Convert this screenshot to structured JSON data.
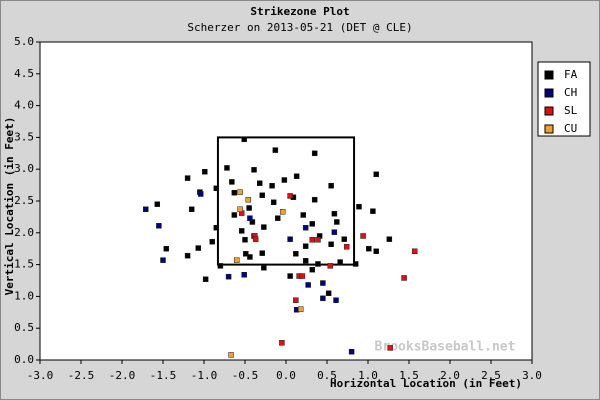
{
  "chart_data": {
    "type": "scatter",
    "title": "Strikezone Plot",
    "subtitle": "Scherzer on 2013-05-21 (DET @ CLE)",
    "x_label": "Horizontal Location (in Feet)",
    "y_label": "Vertical Location (in Feet)",
    "watermark": "BrooksBaseball.net",
    "xlim": [
      -3.0,
      3.0
    ],
    "ylim": [
      0.0,
      5.0
    ],
    "xticks": [
      {
        "value": -3.0,
        "label": "-3.0"
      },
      {
        "value": -2.5,
        "label": "-2.5"
      },
      {
        "value": -2.0,
        "label": "-2.0"
      },
      {
        "value": -1.5,
        "label": "-1.5"
      },
      {
        "value": -1.0,
        "label": "-1.0"
      },
      {
        "value": -0.5,
        "label": "-0.5"
      },
      {
        "value": 0.0,
        "label": "0.0"
      },
      {
        "value": 0.5,
        "label": "0.5"
      },
      {
        "value": 1.0,
        "label": "1.0"
      },
      {
        "value": 1.5,
        "label": "1.5"
      },
      {
        "value": 2.0,
        "label": "2.0"
      },
      {
        "value": 2.5,
        "label": "2.5"
      },
      {
        "value": 3.0,
        "label": "3.0"
      }
    ],
    "yticks": [
      {
        "value": 0.0,
        "label": "0.0"
      },
      {
        "value": 0.5,
        "label": "0.5"
      },
      {
        "value": 1.0,
        "label": "1.0"
      },
      {
        "value": 1.5,
        "label": "1.5"
      },
      {
        "value": 2.0,
        "label": "2.0"
      },
      {
        "value": 2.5,
        "label": "2.5"
      },
      {
        "value": 3.0,
        "label": "3.0"
      },
      {
        "value": 3.5,
        "label": "3.5"
      },
      {
        "value": 4.0,
        "label": "4.0"
      },
      {
        "value": 4.5,
        "label": "4.5"
      },
      {
        "value": 5.0,
        "label": "5.0"
      }
    ],
    "strike_zone": {
      "x": [
        -0.83,
        0.83
      ],
      "y": [
        1.5,
        3.5
      ]
    },
    "legend": "top-right",
    "series": [
      {
        "name": "FA",
        "color": "#000000",
        "x": [
          -1.2,
          -0.99,
          -1.15,
          -1.05,
          -0.85,
          -0.85,
          -1.57,
          -1.46,
          -1.2,
          -1.07,
          -0.9,
          -0.98,
          -0.8,
          -0.51,
          -0.13,
          0.35,
          -0.72,
          -0.39,
          -0.66,
          -0.32,
          -0.17,
          -0.02,
          0.13,
          0.55,
          0.35,
          0.09,
          -0.15,
          -0.29,
          -0.45,
          -0.63,
          -0.63,
          -0.41,
          -0.27,
          -0.39,
          -0.54,
          -0.5,
          -0.1,
          0.21,
          0.32,
          0.41,
          0.59,
          0.62,
          0.71,
          0.55,
          0.24,
          0.12,
          0.24,
          0.39,
          0.66,
          -0.29,
          -0.49,
          -0.44,
          -0.27,
          0.05,
          0.32,
          0.89,
          1.06,
          1.1,
          1.01,
          0.85,
          1.26,
          1.1,
          0.52
        ],
        "y": [
          2.86,
          2.96,
          2.37,
          2.64,
          2.7,
          2.08,
          2.45,
          1.75,
          1.64,
          1.76,
          1.86,
          1.27,
          1.48,
          3.47,
          3.3,
          3.25,
          3.02,
          2.99,
          2.8,
          2.78,
          2.74,
          2.83,
          2.89,
          2.74,
          2.52,
          2.56,
          2.48,
          2.59,
          2.39,
          2.63,
          2.28,
          2.17,
          2.09,
          1.95,
          2.03,
          1.89,
          2.23,
          2.28,
          2.14,
          1.95,
          2.3,
          2.17,
          1.9,
          1.82,
          1.79,
          1.67,
          1.56,
          1.51,
          1.54,
          1.68,
          1.67,
          1.62,
          1.45,
          1.32,
          1.42,
          2.41,
          2.34,
          2.92,
          1.75,
          1.51,
          1.9,
          1.71,
          1.05
        ]
      },
      {
        "name": "CH",
        "color": "#000080",
        "x": [
          -1.71,
          -1.55,
          -1.5,
          -1.04,
          -0.51,
          -0.7,
          -0.44,
          0.05,
          0.27,
          0.45,
          0.45,
          0.61,
          0.13,
          0.8,
          0.59,
          0.24
        ],
        "y": [
          2.37,
          2.11,
          1.57,
          2.61,
          1.34,
          1.31,
          2.23,
          1.9,
          1.18,
          1.21,
          0.97,
          0.94,
          0.79,
          0.13,
          2.01,
          2.08
        ]
      },
      {
        "name": "SL",
        "color": "#dd1111",
        "x": [
          -0.54,
          -0.38,
          0.05,
          0.32,
          0.39,
          0.16,
          0.12,
          0.54,
          0.74,
          0.94,
          1.44,
          1.57,
          1.27,
          -0.05,
          0.2,
          -0.37
        ],
        "y": [
          2.31,
          1.95,
          2.58,
          1.89,
          1.89,
          1.32,
          0.94,
          1.48,
          1.78,
          1.95,
          1.29,
          1.71,
          0.19,
          0.27,
          1.32,
          1.9
        ]
      },
      {
        "name": "CU",
        "color": "#f0a030",
        "x": [
          -0.56,
          -0.46,
          -0.56,
          -0.04,
          -0.6,
          0.18,
          -0.67
        ],
        "y": [
          2.64,
          2.52,
          2.37,
          2.33,
          1.57,
          0.8,
          0.08
        ]
      }
    ]
  }
}
